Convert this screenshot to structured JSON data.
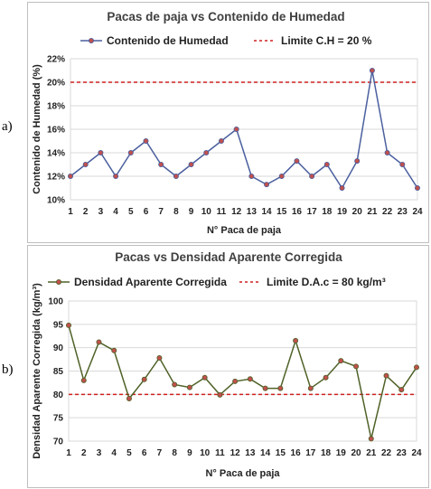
{
  "panels": {
    "a": {
      "letter": "a)"
    },
    "b": {
      "letter": "b)"
    }
  },
  "chart_data": [
    {
      "type": "line",
      "title": "Pacas de paja vs Contenido de Humedad",
      "xlabel": "N° Paca de paja",
      "ylabel": "Contenido de Humedad (%)",
      "x": [
        1,
        2,
        3,
        4,
        5,
        6,
        7,
        8,
        9,
        10,
        11,
        12,
        13,
        14,
        15,
        16,
        17,
        18,
        19,
        20,
        21,
        22,
        23,
        24
      ],
      "ylim": [
        10,
        22
      ],
      "yticks": [
        10,
        12,
        14,
        16,
        18,
        20,
        22
      ],
      "ytick_labels": [
        "10%",
        "12%",
        "14%",
        "16%",
        "18%",
        "20%",
        "22%"
      ],
      "series": [
        {
          "name": "Contenido de Humedad",
          "values": [
            12,
            13,
            14,
            12,
            14,
            15,
            13,
            12,
            13,
            14,
            15,
            16,
            12,
            11.3,
            12,
            13.3,
            12,
            13,
            11,
            13.3,
            21,
            14,
            13,
            11
          ]
        }
      ],
      "reference_line": {
        "name": "Limite C.H = 20 %",
        "value": 20
      },
      "colors": {
        "line": "#4a5f9e",
        "marker": "#c0504d",
        "reference": "#d02020"
      },
      "legend_position": "top",
      "grid": true
    },
    {
      "type": "line",
      "title": "Pacas vs Densidad Aparente Corregida",
      "xlabel": "N° Paca de paja",
      "ylabel": "Densidad Aparente Corregida (kg/m³)",
      "x": [
        1,
        2,
        3,
        4,
        5,
        6,
        7,
        8,
        9,
        10,
        11,
        12,
        13,
        14,
        15,
        16,
        17,
        18,
        19,
        20,
        21,
        22,
        23,
        24
      ],
      "ylim": [
        70,
        100
      ],
      "yticks": [
        70,
        75,
        80,
        85,
        90,
        95,
        100
      ],
      "ytick_labels": [
        "70",
        "75",
        "80",
        "85",
        "90",
        "95",
        "100"
      ],
      "series": [
        {
          "name": "Densidad Aparente Corregida",
          "values": [
            94.8,
            83,
            91.2,
            89.4,
            79.1,
            83.2,
            87.8,
            82.1,
            81.5,
            83.6,
            79.9,
            82.8,
            83.3,
            81.3,
            81.3,
            91.5,
            81.3,
            83.6,
            87.2,
            86,
            70.5,
            84,
            81,
            85.8
          ]
        }
      ],
      "reference_line": {
        "name": "Limite D.A.c = 80 kg/m³",
        "value": 80
      },
      "colors": {
        "line": "#4f6228",
        "marker": "#c0504d",
        "reference": "#d02020"
      },
      "legend_position": "top",
      "grid": true
    }
  ]
}
